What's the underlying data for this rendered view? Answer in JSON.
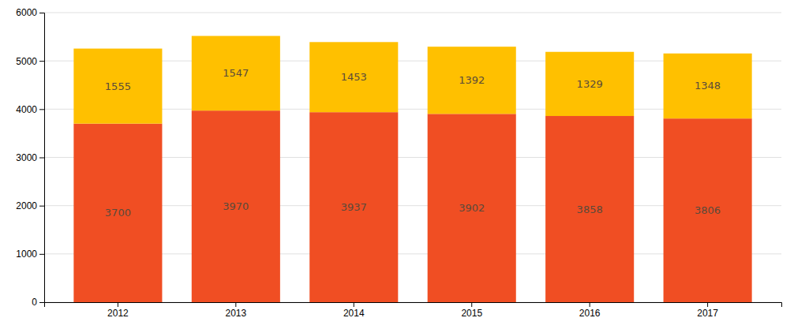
{
  "chart_data": {
    "type": "bar",
    "stacked": true,
    "data_labels": true,
    "grid": true,
    "categories": [
      "2012",
      "2013",
      "2014",
      "2015",
      "2016",
      "2017"
    ],
    "series": [
      {
        "color": "#F04E23",
        "values": [
          3700,
          3970,
          3937,
          3902,
          3858,
          3806
        ]
      },
      {
        "color": "#FFC000",
        "values": [
          1555,
          1547,
          1453,
          1392,
          1329,
          1348
        ]
      }
    ],
    "ylim": [
      0,
      6000
    ],
    "yticks": [
      0,
      1000,
      2000,
      3000,
      4000,
      5000,
      6000
    ]
  }
}
